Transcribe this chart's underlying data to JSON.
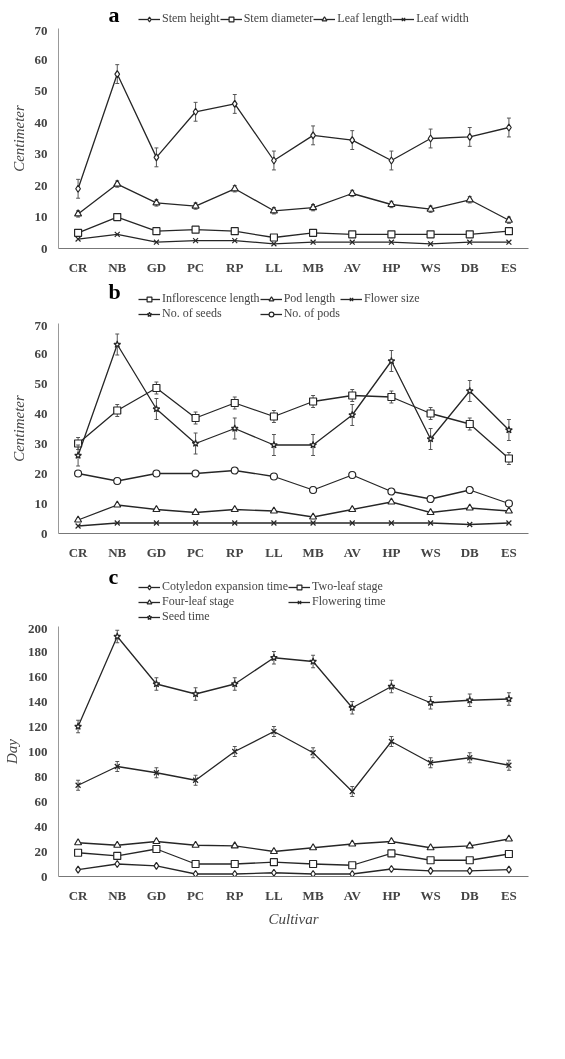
{
  "chart_data": [
    {
      "type": "line",
      "title": "a",
      "ylabel": "Centimeter",
      "categories": [
        "CR",
        "NB",
        "GD",
        "PC",
        "RP",
        "LL",
        "MB",
        "AV",
        "HP",
        "WS",
        "DB",
        "ES"
      ],
      "ylim": [
        0,
        70
      ],
      "yticks": [
        0,
        10,
        20,
        30,
        40,
        50,
        60,
        70
      ],
      "grid": false,
      "legend": "top",
      "line_style": "solid",
      "series": [
        {
          "name": "Stem height",
          "color": "#262626",
          "marker": "diamond",
          "values": [
            19,
            55.5,
            29,
            43.5,
            46,
            28,
            36,
            34.5,
            28,
            35,
            35.5,
            38.5
          ],
          "errors": [
            3,
            3,
            3,
            3,
            3,
            3,
            3,
            3,
            3,
            3,
            3,
            3
          ]
        },
        {
          "name": "Stem diameter",
          "color": "#262626",
          "marker": "square",
          "values": [
            5,
            10,
            5.5,
            6,
            5.5,
            3.5,
            5,
            4.5,
            4.5,
            4.5,
            4.5,
            5.5
          ]
        },
        {
          "name": "Leaf length",
          "color": "#262626",
          "marker": "triangle",
          "values": [
            11,
            20.5,
            14.5,
            13.5,
            19,
            12,
            13,
            17.5,
            14,
            12.5,
            15.5,
            9
          ],
          "errors": [
            1,
            1,
            1,
            1,
            1,
            1,
            1,
            1,
            1,
            1,
            1,
            1
          ]
        },
        {
          "name": "Leaf width",
          "color": "#262626",
          "marker": "cross",
          "values": [
            3,
            4.5,
            2,
            2.5,
            2.5,
            1.5,
            2,
            2,
            2,
            1.5,
            2,
            2
          ]
        }
      ]
    },
    {
      "type": "line",
      "title": "b",
      "ylabel": "Centimeter",
      "categories": [
        "CR",
        "NB",
        "GD",
        "PC",
        "RP",
        "LL",
        "MB",
        "AV",
        "HP",
        "WS",
        "DB",
        "ES"
      ],
      "ylim": [
        0,
        70
      ],
      "yticks": [
        0,
        10,
        20,
        30,
        40,
        50,
        60,
        70
      ],
      "grid": false,
      "legend": "top",
      "line_style": "solid",
      "series": [
        {
          "name": "Inflorescence length",
          "color": "#262626",
          "marker": "square",
          "values": [
            30,
            41,
            48.5,
            38.5,
            43.5,
            39,
            44,
            46,
            45.5,
            40,
            36.5,
            25
          ],
          "errors": [
            2,
            2,
            2,
            2,
            2,
            2,
            2,
            2,
            2,
            2,
            2,
            2
          ]
        },
        {
          "name": "Pod length",
          "color": "#262626",
          "marker": "triangle",
          "values": [
            4.5,
            9.5,
            8,
            7,
            8,
            7.5,
            5.5,
            8,
            10.5,
            7,
            8.5,
            7.5
          ]
        },
        {
          "name": "Flower size",
          "color": "#262626",
          "marker": "cross",
          "values": [
            2.5,
            3.5,
            3.5,
            3.5,
            3.5,
            3.5,
            3.5,
            3.5,
            3.5,
            3.5,
            3,
            3.5
          ]
        },
        {
          "name": "No. of seeds",
          "color": "#262626",
          "marker": "star",
          "values": [
            26,
            63,
            41.5,
            30,
            35,
            29.5,
            29.5,
            39.5,
            57.5,
            31.5,
            47.5,
            34.5
          ],
          "errors": [
            3.5,
            3.5,
            3.5,
            3.5,
            3.5,
            3.5,
            3.5,
            3.5,
            3.5,
            3.5,
            3.5,
            3.5
          ]
        },
        {
          "name": "No. of pods",
          "color": "#262626",
          "marker": "circle",
          "values": [
            20,
            17.5,
            20,
            20,
            21,
            19,
            14.5,
            19.5,
            14,
            11.5,
            14.5,
            10
          ],
          "errors": [
            1,
            1,
            1,
            1,
            1,
            1,
            1,
            1,
            1,
            1,
            1,
            1
          ]
        }
      ]
    },
    {
      "type": "line",
      "title": "c",
      "xlabel": "Cultivar",
      "ylabel": "Day",
      "categories": [
        "CR",
        "NB",
        "GD",
        "PC",
        "RP",
        "LL",
        "MB",
        "AV",
        "HP",
        "WS",
        "DB",
        "ES"
      ],
      "ylim": [
        0,
        200
      ],
      "yticks": [
        0,
        20,
        40,
        60,
        80,
        100,
        120,
        140,
        160,
        180,
        200
      ],
      "grid": false,
      "legend": "top",
      "line_style": "solid",
      "series": [
        {
          "name": "Cotyledon expansion time",
          "color": "#262626",
          "marker": "diamond",
          "values": [
            5.5,
            10,
            8.5,
            2,
            2,
            3,
            2,
            2,
            6,
            4.5,
            4.5,
            5.5
          ]
        },
        {
          "name": "Two-leaf stage",
          "color": "#262626",
          "marker": "square",
          "values": [
            19,
            16.5,
            22,
            10,
            10,
            11.5,
            10,
            9,
            18.5,
            13,
            13,
            18
          ]
        },
        {
          "name": "Four-leaf stage",
          "color": "#262626",
          "marker": "triangle",
          "values": [
            27,
            25,
            28,
            25,
            24.5,
            20,
            23,
            26,
            28,
            23,
            24.5,
            30
          ]
        },
        {
          "name": "Flowering time",
          "color": "#262626",
          "marker": "cross",
          "values": [
            73,
            88,
            83,
            77,
            100,
            116,
            99,
            68,
            108,
            91,
            95,
            89
          ],
          "errors": [
            4,
            4,
            4,
            4,
            4,
            4,
            4,
            4,
            4,
            4,
            4,
            4
          ]
        },
        {
          "name": "Seed time",
          "color": "#262626",
          "marker": "star",
          "values": [
            120,
            192,
            154,
            146,
            154,
            175,
            172,
            135,
            152,
            139,
            141,
            142
          ],
          "errors": [
            5,
            5,
            5,
            5,
            5,
            5,
            5,
            5,
            5,
            5,
            5,
            5
          ]
        }
      ]
    }
  ]
}
